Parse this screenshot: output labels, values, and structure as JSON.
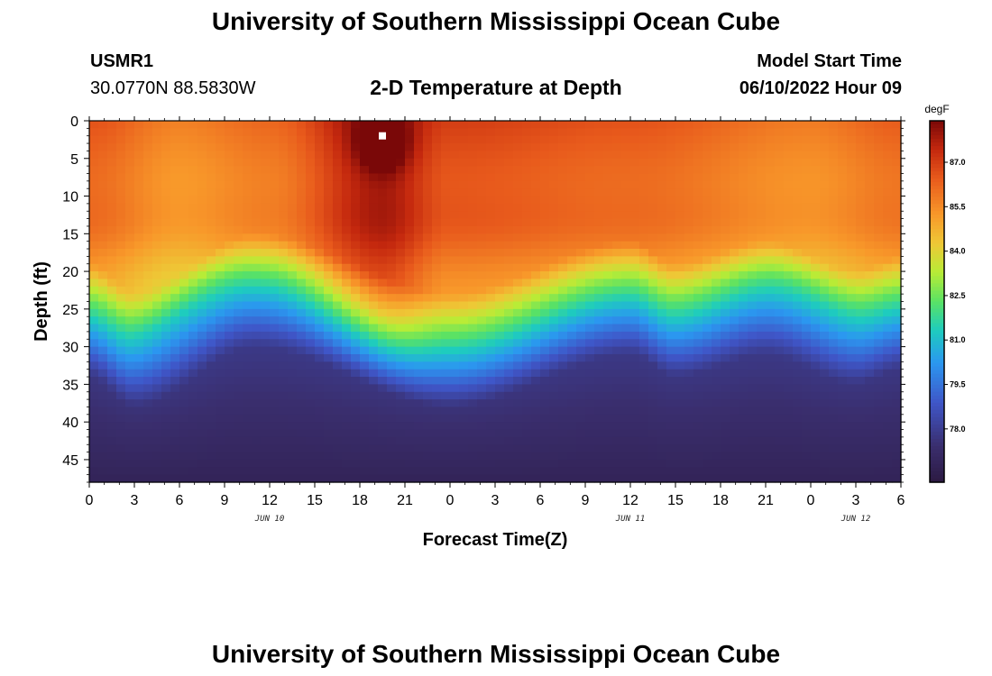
{
  "header": {
    "title": "University of Southern Mississippi Ocean Cube",
    "station_id": "USMR1",
    "coordinates": "30.0770N  88.5830W",
    "subtitle": "2-D Temperature at Depth",
    "model_label": "Model Start Time",
    "model_time": "06/10/2022 Hour 09",
    "footer_title": "University of Southern Mississippi Ocean Cube"
  },
  "chart_data": {
    "type": "heatmap",
    "title": "2-D Temperature at Depth",
    "xlabel": "Forecast Time(Z)",
    "ylabel": "Depth (ft)",
    "x_ticks": [
      "0",
      "3",
      "6",
      "9",
      "12",
      "15",
      "18",
      "21",
      "0",
      "3",
      "6",
      "9",
      "12",
      "15",
      "18",
      "21",
      "0",
      "3",
      "6"
    ],
    "x_range_hours": [
      0,
      54
    ],
    "day_labels": [
      {
        "label": "JUN 10",
        "hour": 12
      },
      {
        "label": "JUN 11",
        "hour": 36
      },
      {
        "label": "JUN 12",
        "hour": 51
      }
    ],
    "y_ticks": [
      0,
      5,
      10,
      15,
      20,
      25,
      30,
      35,
      40,
      45
    ],
    "y_range": [
      0,
      48
    ],
    "colorbar": {
      "unit": "degF",
      "ticks": [
        "87.0",
        "85.5",
        "84.0",
        "82.5",
        "81.0",
        "79.5",
        "78.0"
      ],
      "range": [
        76.2,
        88.4
      ]
    },
    "surface_temp_by_hour": [
      {
        "hour": 0,
        "temp": 86.6
      },
      {
        "hour": 6,
        "temp": 85.7
      },
      {
        "hour": 12,
        "temp": 86.2
      },
      {
        "hour": 19.5,
        "temp": 88.3
      },
      {
        "hour": 24,
        "temp": 87.0
      },
      {
        "hour": 36,
        "temp": 86.6
      },
      {
        "hour": 48,
        "temp": 85.8
      },
      {
        "hour": 54,
        "temp": 86.4
      }
    ],
    "thermocline_depth_by_hour": [
      {
        "hour": 0,
        "depth_ft": 24
      },
      {
        "hour": 3,
        "depth_ft": 28
      },
      {
        "hour": 11,
        "depth_ft": 20
      },
      {
        "hour": 24,
        "depth_ft": 28
      },
      {
        "hour": 36,
        "depth_ft": 21
      },
      {
        "hour": 39,
        "depth_ft": 24
      },
      {
        "hour": 45,
        "depth_ft": 21
      },
      {
        "hour": 51,
        "depth_ft": 25
      },
      {
        "hour": 54,
        "depth_ft": 23
      }
    ],
    "bottom_temp_range": [
      76.8,
      78.4
    ],
    "marker": {
      "hour": 19.5,
      "depth_ft": 2
    }
  }
}
